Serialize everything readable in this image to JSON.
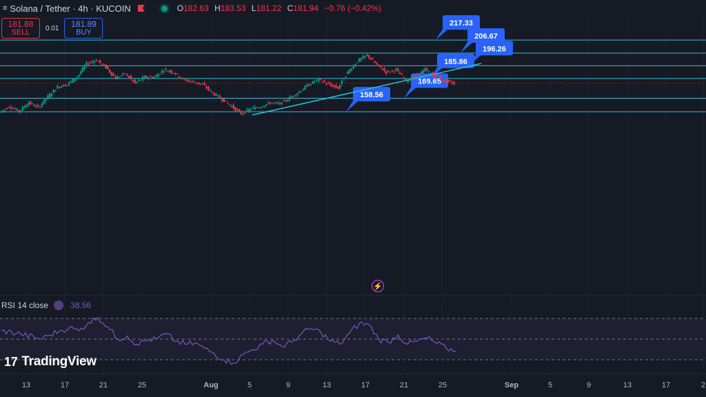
{
  "header": {
    "symbol": "Solana / Tether · 4h · KUCOIN",
    "ohlc": [
      {
        "k": "O",
        "v": "182.63"
      },
      {
        "k": "H",
        "v": "183.53"
      },
      {
        "k": "L",
        "v": "181.22"
      },
      {
        "k": "C",
        "v": "181.94"
      }
    ],
    "change": "−0.76 (−0.42%)"
  },
  "trade": {
    "sell_price": "181.88",
    "sell_label": "SELL",
    "spread": "0.01",
    "buy_price": "181.89",
    "buy_label": "BUY"
  },
  "rsi": {
    "label": "RSI 14 close",
    "value": "38.56"
  },
  "logo": "TradingView",
  "colors": {
    "background": "#161a25",
    "up": "#089981",
    "down": "#f23645",
    "level_line": "#26c6da",
    "label_bg": "#2962ff",
    "rsi": "#7e57c2"
  },
  "chart_data": {
    "type": "candlestick",
    "symbol": "SOL/USDT",
    "timeframe": "4h",
    "x_ticks": [
      "13",
      "17",
      "21",
      "25",
      "Aug",
      "5",
      "9",
      "13",
      "17",
      "21",
      "25",
      "Sep",
      "5",
      "9",
      "13",
      "17",
      "2"
    ],
    "levels": [
      {
        "label": "217.33",
        "value": 217.33
      },
      {
        "label": "206.67",
        "value": 206.67
      },
      {
        "label": "196.26",
        "value": 196.26
      },
      {
        "label": "185.86",
        "value": 185.86
      },
      {
        "label": "169.65",
        "value": 169.65
      },
      {
        "label": "158.56",
        "value": 158.56
      }
    ],
    "trendline": {
      "start": [
        30.0,
        155.9
      ],
      "end": [
        55.6,
        198.1
      ]
    },
    "current_price": 181.94,
    "path_keypoints": [
      [
        0,
        158
      ],
      [
        1,
        163
      ],
      [
        2,
        159
      ],
      [
        3,
        166
      ],
      [
        4,
        162
      ],
      [
        5,
        171
      ],
      [
        6,
        179
      ],
      [
        7,
        181
      ],
      [
        8,
        187
      ],
      [
        9,
        198
      ],
      [
        10,
        201
      ],
      [
        11,
        195
      ],
      [
        12,
        186
      ],
      [
        13,
        190
      ],
      [
        14,
        182
      ],
      [
        15,
        187
      ],
      [
        16,
        187
      ],
      [
        17,
        193
      ],
      [
        18,
        191
      ],
      [
        19,
        185
      ],
      [
        20,
        183
      ],
      [
        21,
        181
      ],
      [
        22,
        174
      ],
      [
        23,
        169
      ],
      [
        24,
        163
      ],
      [
        25,
        157
      ],
      [
        26,
        161
      ],
      [
        27,
        163
      ],
      [
        28,
        166
      ],
      [
        29,
        165
      ],
      [
        30,
        170
      ],
      [
        31,
        175
      ],
      [
        32,
        181
      ],
      [
        33,
        185
      ],
      [
        34,
        181
      ],
      [
        35,
        178
      ],
      [
        36,
        191
      ],
      [
        37,
        200
      ],
      [
        38,
        205
      ],
      [
        39,
        197
      ],
      [
        40,
        191
      ],
      [
        41,
        193
      ],
      [
        42,
        184
      ],
      [
        43,
        188
      ],
      [
        44,
        193
      ],
      [
        45,
        188
      ],
      [
        46,
        184
      ],
      [
        47,
        182
      ]
    ],
    "rsi_series_keypoints": [
      [
        0,
        58
      ],
      [
        2,
        55
      ],
      [
        4,
        50
      ],
      [
        5,
        54
      ],
      [
        6,
        58
      ],
      [
        7,
        61
      ],
      [
        8,
        58
      ],
      [
        9,
        66
      ],
      [
        10,
        71
      ],
      [
        11,
        62
      ],
      [
        12,
        50
      ],
      [
        13,
        53
      ],
      [
        14,
        45
      ],
      [
        15,
        49
      ],
      [
        16,
        50
      ],
      [
        17,
        55
      ],
      [
        18,
        48
      ],
      [
        19,
        45
      ],
      [
        20,
        46
      ],
      [
        21,
        41
      ],
      [
        22,
        36
      ],
      [
        23,
        30
      ],
      [
        24,
        27
      ],
      [
        25,
        35
      ],
      [
        26,
        40
      ],
      [
        27,
        45
      ],
      [
        28,
        49
      ],
      [
        29,
        43
      ],
      [
        30,
        47
      ],
      [
        31,
        55
      ],
      [
        32,
        60
      ],
      [
        33,
        57
      ],
      [
        34,
        48
      ],
      [
        35,
        45
      ],
      [
        36,
        56
      ],
      [
        37,
        65
      ],
      [
        38,
        64
      ],
      [
        39,
        50
      ],
      [
        40,
        47
      ],
      [
        41,
        54
      ],
      [
        42,
        45
      ],
      [
        43,
        48
      ],
      [
        44,
        51
      ],
      [
        45,
        46
      ],
      [
        46,
        41
      ],
      [
        47,
        38.56
      ]
    ],
    "rsi_levels": [
      70,
      50,
      30
    ]
  }
}
